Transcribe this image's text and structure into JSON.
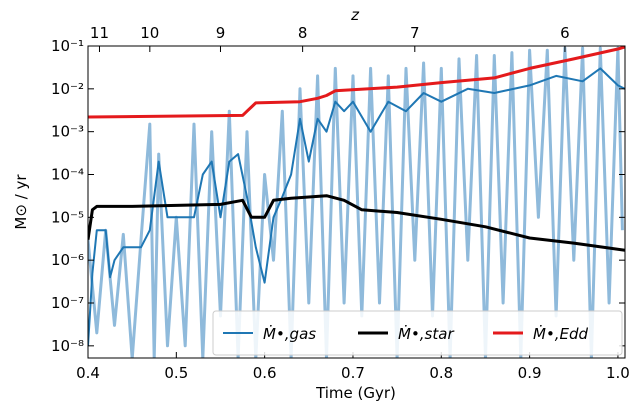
{
  "chart_data": {
    "type": "line",
    "y_scale": "log",
    "x_label": "Time (Gyr)",
    "y_label": "M⊙ / yr",
    "xlim": [
      0.4,
      1.008
    ],
    "ylim": [
      5.2e-09,
      0.1
    ],
    "xticks": [
      {
        "value": 0.4,
        "label": "0.4"
      },
      0.5,
      0.6,
      0.7,
      0.8,
      0.9,
      {
        "value": 1,
        "label": "1.0"
      }
    ],
    "yticks": [
      {
        "value": 1e-08,
        "label": "10⁻⁸"
      },
      {
        "value": 1e-07,
        "label": "10⁻⁷"
      },
      {
        "value": 1e-06,
        "label": "10⁻⁶"
      },
      {
        "value": 1e-05,
        "label": "10⁻⁵"
      },
      {
        "value": 0.0001,
        "label": "10⁻⁴"
      },
      {
        "value": 0.001,
        "label": "10⁻³"
      },
      {
        "value": 0.01,
        "label": "10⁻²"
      },
      {
        "value": 0.1,
        "label": "10⁻¹"
      }
    ],
    "top_axis": {
      "label": "z",
      "ticks": [
        11,
        10,
        9,
        8,
        7,
        6
      ],
      "times": [
        0.413,
        0.47,
        0.55,
        0.643,
        0.77,
        0.94
      ]
    },
    "legend": "lower right",
    "series": [
      {
        "name": "Ṁ•,gas raw",
        "legend": false,
        "color": "#8fbadb",
        "width": 3,
        "x": [
          0.4,
          0.41,
          0.42,
          0.43,
          0.44,
          0.45,
          0.46,
          0.47,
          0.475,
          0.48,
          0.49,
          0.5,
          0.51,
          0.52,
          0.53,
          0.54,
          0.55,
          0.56,
          0.57,
          0.58,
          0.59,
          0.6,
          0.61,
          0.62,
          0.63,
          0.64,
          0.65,
          0.66,
          0.67,
          0.68,
          0.69,
          0.7,
          0.71,
          0.72,
          0.73,
          0.74,
          0.75,
          0.76,
          0.77,
          0.78,
          0.79,
          0.8,
          0.81,
          0.82,
          0.83,
          0.84,
          0.85,
          0.86,
          0.87,
          0.88,
          0.89,
          0.9,
          0.91,
          0.92,
          0.93,
          0.94,
          0.95,
          0.96,
          0.97,
          0.98,
          0.99,
          1.0,
          1.005
        ],
        "values": [
          3e-06,
          2e-08,
          5e-06,
          3e-08,
          4e-06,
          5e-09,
          3e-06,
          0.0015,
          5e-09,
          0.0003,
          1e-08,
          1e-05,
          1e-08,
          0.0015,
          5e-09,
          0.001,
          5e-08,
          0.003,
          5e-09,
          0.001,
          5e-09,
          0.0001,
          1e-06,
          0.003,
          5e-09,
          0.01,
          1e-07,
          0.02,
          5e-09,
          0.03,
          1e-07,
          0.02,
          5e-08,
          0.03,
          1e-07,
          0.02,
          5e-09,
          0.03,
          1e-06,
          0.04,
          5e-08,
          0.03,
          5e-09,
          0.05,
          1e-06,
          0.06,
          5e-09,
          0.06,
          1e-07,
          0.07,
          5e-09,
          0.08,
          1e-05,
          0.08,
          5e-08,
          0.09,
          1e-06,
          0.09,
          5e-09,
          0.09,
          1e-07,
          0.09,
          5e-06
        ]
      },
      {
        "name": "Ṁ•,gas",
        "color": "#1f77b4",
        "width": 2,
        "x": [
          0.4,
          0.405,
          0.41,
          0.42,
          0.425,
          0.43,
          0.44,
          0.45,
          0.46,
          0.47,
          0.48,
          0.49,
          0.5,
          0.52,
          0.53,
          0.54,
          0.55,
          0.56,
          0.57,
          0.58,
          0.59,
          0.6,
          0.61,
          0.62,
          0.63,
          0.64,
          0.65,
          0.66,
          0.67,
          0.68,
          0.69,
          0.7,
          0.72,
          0.74,
          0.76,
          0.78,
          0.8,
          0.83,
          0.86,
          0.9,
          0.93,
          0.96,
          0.98,
          1.0,
          1.008
        ],
        "values": [
          1e-08,
          5e-07,
          5e-06,
          5e-06,
          4e-07,
          1e-06,
          2e-06,
          2e-06,
          2e-06,
          5e-06,
          0.0002,
          1e-05,
          1e-05,
          1e-05,
          0.0001,
          0.0002,
          1e-05,
          0.0002,
          0.0003,
          3e-05,
          2e-06,
          3e-07,
          1e-05,
          3e-05,
          0.0001,
          0.002,
          0.0002,
          0.002,
          0.001,
          0.005,
          0.003,
          0.005,
          0.001,
          0.005,
          0.003,
          0.008,
          0.005,
          0.01,
          0.008,
          0.012,
          0.02,
          0.015,
          0.03,
          0.012,
          0.01
        ]
      },
      {
        "name": "Ṁ•,star",
        "color": "#000000",
        "width": 3,
        "x": [
          0.4,
          0.405,
          0.41,
          0.45,
          0.5,
          0.55,
          0.575,
          0.585,
          0.6,
          0.61,
          0.63,
          0.67,
          0.69,
          0.71,
          0.75,
          0.8,
          0.85,
          0.9,
          0.95,
          1.008
        ],
        "values": [
          3e-06,
          1.5e-05,
          1.8e-05,
          1.8e-05,
          1.9e-05,
          2e-05,
          2.5e-05,
          1e-05,
          1e-05,
          2.5e-05,
          2.8e-05,
          3.2e-05,
          2.5e-05,
          1.5e-05,
          1.3e-05,
          9e-06,
          6e-06,
          3.3e-06,
          2.5e-06,
          1.7e-06
        ]
      },
      {
        "name": "Ṁ•,Edd",
        "color": "#e41a1c",
        "width": 3,
        "x": [
          0.4,
          0.575,
          0.58,
          0.59,
          0.64,
          0.66,
          0.67,
          0.68,
          0.75,
          0.8,
          0.86,
          0.9,
          0.95,
          1.0,
          1.008
        ],
        "values": [
          0.0022,
          0.0024,
          0.003,
          0.0047,
          0.005,
          0.006,
          0.007,
          0.009,
          0.011,
          0.014,
          0.018,
          0.03,
          0.05,
          0.085,
          0.095
        ]
      }
    ]
  }
}
